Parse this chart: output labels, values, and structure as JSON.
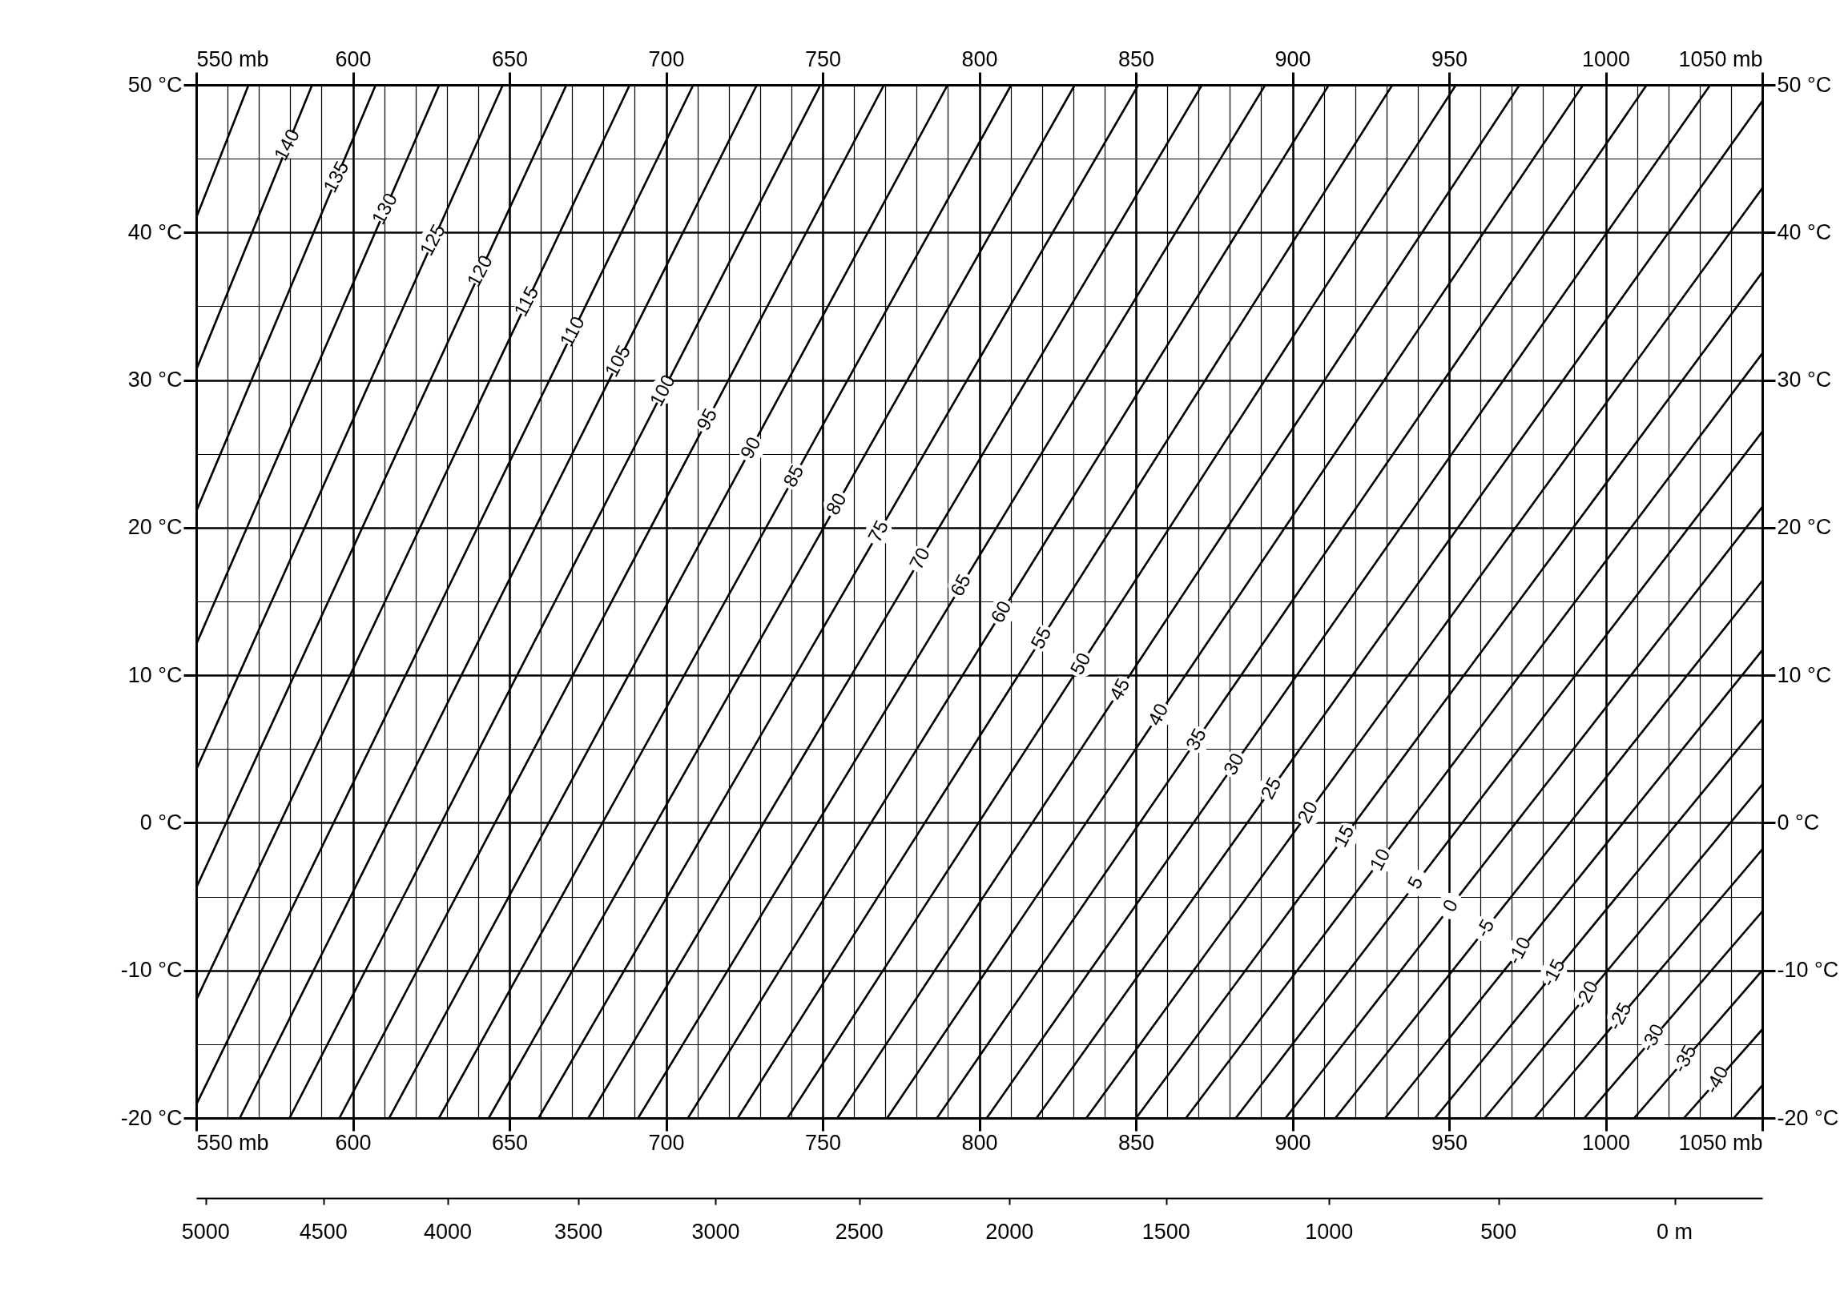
{
  "chart_data": {
    "type": "line",
    "grid": true,
    "xlim": [
      550,
      1050
    ],
    "ylim": [
      -20,
      50
    ],
    "x2lim": [
      550,
      1050
    ],
    "y2lim": [
      -20,
      50
    ],
    "xticks": [
      {
        "value": 550,
        "label": "550 mb"
      },
      {
        "value": 560,
        "label": null
      },
      {
        "value": 570,
        "label": null
      },
      {
        "value": 580,
        "label": null
      },
      {
        "value": 590,
        "label": null
      },
      600,
      {
        "value": 610,
        "label": null
      },
      {
        "value": 620,
        "label": null
      },
      {
        "value": 630,
        "label": null
      },
      {
        "value": 640,
        "label": null
      },
      650,
      {
        "value": 660,
        "label": null
      },
      {
        "value": 670,
        "label": null
      },
      {
        "value": 680,
        "label": null
      },
      {
        "value": 690,
        "label": null
      },
      700,
      {
        "value": 710,
        "label": null
      },
      {
        "value": 720,
        "label": null
      },
      {
        "value": 730,
        "label": null
      },
      {
        "value": 740,
        "label": null
      },
      750,
      {
        "value": 760,
        "label": null
      },
      {
        "value": 770,
        "label": null
      },
      {
        "value": 780,
        "label": null
      },
      {
        "value": 790,
        "label": null
      },
      800,
      {
        "value": 810,
        "label": null
      },
      {
        "value": 820,
        "label": null
      },
      {
        "value": 830,
        "label": null
      },
      {
        "value": 840,
        "label": null
      },
      850,
      {
        "value": 860,
        "label": null
      },
      {
        "value": 870,
        "label": null
      },
      {
        "value": 880,
        "label": null
      },
      {
        "value": 890,
        "label": null
      },
      900,
      {
        "value": 910,
        "label": null
      },
      {
        "value": 920,
        "label": null
      },
      {
        "value": 930,
        "label": null
      },
      {
        "value": 940,
        "label": null
      },
      950,
      {
        "value": 960,
        "label": null
      },
      {
        "value": 970,
        "label": null
      },
      {
        "value": 980,
        "label": null
      },
      {
        "value": 990,
        "label": null
      },
      1000,
      {
        "value": 1010,
        "label": null
      },
      {
        "value": 1020,
        "label": null
      },
      {
        "value": 1030,
        "label": null
      },
      {
        "value": 1040,
        "label": null
      },
      {
        "value": 1050,
        "label": "1050 mb"
      }
    ],
    "x2ticks": [
      {
        "value": 550,
        "label": "550 mb"
      },
      600,
      650,
      700,
      750,
      800,
      850,
      900,
      950,
      1000,
      {
        "value": 1050,
        "label": "1050 mb"
      }
    ],
    "annotations": [
      "5000",
      "4500",
      "4000",
      "3500",
      "3000",
      "2500",
      "2000",
      "1500",
      "1000",
      "500",
      "0 m"
    ],
    "yticks": [
      {
        "value": -20,
        "label": "-20 °C"
      },
      {
        "value": -15,
        "label": null
      },
      {
        "value": -10,
        "label": "-10 °C"
      },
      {
        "value": -5,
        "label": null
      },
      {
        "value": 0,
        "label": "0 °C"
      },
      {
        "value": 5,
        "label": null
      },
      {
        "value": 10,
        "label": "10 °C"
      },
      {
        "value": 15,
        "label": null
      },
      {
        "value": 20,
        "label": "20 °C"
      },
      {
        "value": 25,
        "label": null
      },
      {
        "value": 30,
        "label": "30 °C"
      },
      {
        "value": 35,
        "label": null
      },
      {
        "value": 40,
        "label": "40 °C"
      },
      {
        "value": 45,
        "label": null
      },
      {
        "value": 50,
        "label": "50 °C"
      }
    ],
    "y2ticks": [
      {
        "value": -20,
        "label": "-20 °C"
      },
      {
        "value": -10,
        "label": "-10 °C"
      },
      {
        "value": 0,
        "label": "0 °C"
      },
      {
        "value": 10,
        "label": "10 °C"
      },
      {
        "value": 20,
        "label": "20 °C"
      },
      {
        "value": 30,
        "label": "30 °C"
      },
      {
        "value": 40,
        "label": "40 °C"
      },
      {
        "value": 50,
        "label": "50 °C"
      }
    ],
    "series": [
      {
        "color": "#000000",
        "x": [
          550,
          566.7
        ],
        "values": [
          41.0,
          50
        ]
      },
      {
        "name": "140",
        "color": "#000000",
        "x": [
          550,
          587.0
        ],
        "values": [
          30.7,
          50
        ]
      },
      {
        "name": "135",
        "color": "#000000",
        "x": [
          550,
          607.3
        ],
        "values": [
          21.1,
          50
        ]
      },
      {
        "name": "130",
        "color": "#000000",
        "x": [
          550,
          627.6
        ],
        "values": [
          12.1,
          50
        ]
      },
      {
        "name": "125",
        "color": "#000000",
        "x": [
          550,
          647.9
        ],
        "values": [
          3.6,
          50
        ]
      },
      {
        "name": "120",
        "color": "#000000",
        "x": [
          550,
          668.2
        ],
        "values": [
          -4.4,
          50
        ]
      },
      {
        "name": "115",
        "color": "#000000",
        "x": [
          550,
          688.4
        ],
        "values": [
          -12.0,
          50
        ]
      },
      {
        "name": "110",
        "color": "#000000",
        "x": [
          550,
          708.7
        ],
        "values": [
          -19.1,
          50
        ]
      },
      {
        "name": "105",
        "color": "#000000",
        "x": [
          563.9,
          729.0
        ],
        "values": [
          -20,
          50
        ]
      },
      {
        "name": "100",
        "color": "#000000",
        "x": [
          579.8,
          749.3
        ],
        "values": [
          -20,
          50
        ]
      },
      {
        "name": "95",
        "color": "#000000",
        "x": [
          595.7,
          769.6
        ],
        "values": [
          -20,
          50
        ]
      },
      {
        "name": "90",
        "color": "#000000",
        "x": [
          611.6,
          789.9
        ],
        "values": [
          -20,
          50
        ]
      },
      {
        "name": "85",
        "color": "#000000",
        "x": [
          627.5,
          810.2
        ],
        "values": [
          -20,
          50
        ]
      },
      {
        "name": "80",
        "color": "#000000",
        "x": [
          643.4,
          830.5
        ],
        "values": [
          -20,
          50
        ]
      },
      {
        "name": "75",
        "color": "#000000",
        "x": [
          659.3,
          850.8
        ],
        "values": [
          -20,
          50
        ]
      },
      {
        "name": "70",
        "color": "#000000",
        "x": [
          675.2,
          871.1
        ],
        "values": [
          -20,
          50
        ]
      },
      {
        "name": "65",
        "color": "#000000",
        "x": [
          691.1,
          891.3
        ],
        "values": [
          -20,
          50
        ]
      },
      {
        "name": "60",
        "color": "#000000",
        "x": [
          707.0,
          911.6
        ],
        "values": [
          -20,
          50
        ]
      },
      {
        "name": "55",
        "color": "#000000",
        "x": [
          722.9,
          931.9
        ],
        "values": [
          -20,
          50
        ]
      },
      {
        "name": "50",
        "color": "#000000",
        "x": [
          738.8,
          952.2
        ],
        "values": [
          -20,
          50
        ]
      },
      {
        "name": "45",
        "color": "#000000",
        "x": [
          754.7,
          972.5
        ],
        "values": [
          -20,
          50
        ]
      },
      {
        "name": "40",
        "color": "#000000",
        "x": [
          770.6,
          992.8
        ],
        "values": [
          -20,
          50
        ]
      },
      {
        "name": "35",
        "color": "#000000",
        "x": [
          786.5,
          1013.1
        ],
        "values": [
          -20,
          50
        ]
      },
      {
        "name": "30",
        "color": "#000000",
        "x": [
          802.4,
          1033.4
        ],
        "values": [
          -20,
          50
        ]
      },
      {
        "name": "25",
        "color": "#000000",
        "x": [
          818.3,
          1050
        ],
        "values": [
          -20,
          48.9
        ]
      },
      {
        "name": "20",
        "color": "#000000",
        "x": [
          834.2,
          1050
        ],
        "values": [
          -20,
          43.0
        ]
      },
      {
        "name": "15",
        "color": "#000000",
        "x": [
          850.1,
          1050
        ],
        "values": [
          -20,
          37.3
        ]
      },
      {
        "name": "10",
        "color": "#000000",
        "x": [
          866.0,
          1050
        ],
        "values": [
          -20,
          31.8
        ]
      },
      {
        "name": "5",
        "color": "#000000",
        "x": [
          881.9,
          1050
        ],
        "values": [
          -20,
          26.5
        ]
      },
      {
        "name": "0",
        "color": "#000000",
        "x": [
          897.8,
          1050
        ],
        "values": [
          -20,
          21.4
        ]
      },
      {
        "name": "-5",
        "color": "#000000",
        "x": [
          913.7,
          1050
        ],
        "values": [
          -20,
          16.4
        ]
      },
      {
        "name": "-10",
        "color": "#000000",
        "x": [
          929.6,
          1050
        ],
        "values": [
          -20,
          11.7
        ]
      },
      {
        "name": "-15",
        "color": "#000000",
        "x": [
          945.5,
          1050
        ],
        "values": [
          -20,
          7.0
        ]
      },
      {
        "name": "-20",
        "color": "#000000",
        "x": [
          961.4,
          1050
        ],
        "values": [
          -20,
          2.6
        ]
      },
      {
        "name": "-25",
        "color": "#000000",
        "x": [
          977.3,
          1050
        ],
        "values": [
          -20,
          -1.8
        ]
      },
      {
        "name": "-30",
        "color": "#000000",
        "x": [
          993.2,
          1050
        ],
        "values": [
          -20,
          -6.0
        ]
      },
      {
        "name": "-35",
        "color": "#000000",
        "x": [
          1009.1,
          1050
        ],
        "values": [
          -20,
          -10.0
        ]
      },
      {
        "name": "-40",
        "color": "#000000",
        "x": [
          1025.0,
          1050
        ],
        "values": [
          -20,
          -14.0
        ]
      },
      {
        "color": "#000000",
        "x": [
          1040.9,
          1050
        ],
        "values": [
          -20,
          -17.8
        ]
      }
    ]
  }
}
